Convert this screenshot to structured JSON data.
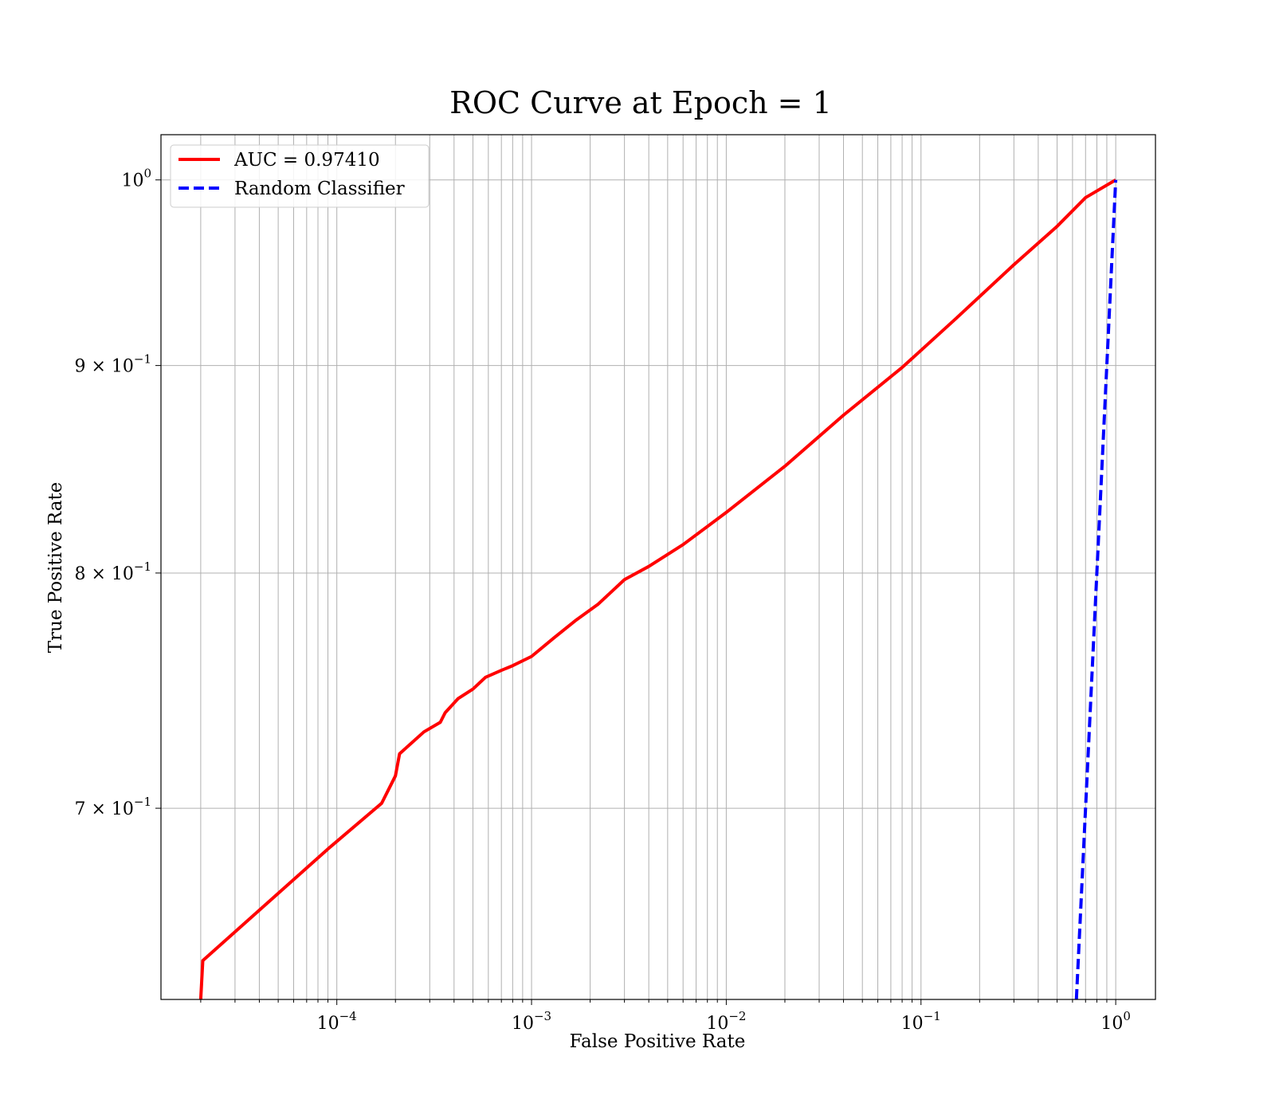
{
  "chart_data": {
    "type": "line",
    "title": "ROC Curve at Epoch = 1",
    "xlabel": "False Positive Rate",
    "ylabel": "True Positive Rate",
    "xscale": "log",
    "yscale": "log",
    "xlim": [
      1.25e-05,
      1.6
    ],
    "ylim": [
      0.628,
      1.026
    ],
    "grid": true,
    "grid_which": "both",
    "legend_position": "upper-left",
    "x_ticks": [
      {
        "value": 0.0001,
        "base": "10",
        "exp": "−4"
      },
      {
        "value": 0.001,
        "base": "10",
        "exp": "−3"
      },
      {
        "value": 0.01,
        "base": "10",
        "exp": "−2"
      },
      {
        "value": 0.1,
        "base": "10",
        "exp": "−1"
      },
      {
        "value": 1,
        "base": "10",
        "exp": "0"
      }
    ],
    "y_ticks": [
      {
        "value": 1.0,
        "base": "10",
        "exp": "0"
      },
      {
        "value": 0.9,
        "base": "9 × 10",
        "exp": "−1"
      },
      {
        "value": 0.8,
        "base": "8 × 10",
        "exp": "−1"
      },
      {
        "value": 0.7,
        "base": "7 × 10",
        "exp": "−1"
      }
    ],
    "series": [
      {
        "name": "AUC = 0.97410",
        "color": "#ff0000",
        "style": "solid",
        "x": [
          2e-05,
          2.05e-05,
          9e-05,
          0.00017,
          0.0002,
          0.00021,
          0.00028,
          0.00034,
          0.00036,
          0.00042,
          0.0005,
          0.00058,
          0.0007,
          0.0008,
          0.001,
          0.0013,
          0.0017,
          0.0022,
          0.003,
          0.004,
          0.006,
          0.01,
          0.02,
          0.04,
          0.08,
          0.15,
          0.3,
          0.5,
          0.7,
          1.0
        ],
        "y": [
          0.628,
          0.642,
          0.684,
          0.702,
          0.713,
          0.722,
          0.731,
          0.735,
          0.739,
          0.745,
          0.749,
          0.754,
          0.757,
          0.759,
          0.763,
          0.771,
          0.779,
          0.786,
          0.797,
          0.803,
          0.813,
          0.828,
          0.85,
          0.875,
          0.899,
          0.924,
          0.953,
          0.974,
          0.99,
          1.0
        ]
      },
      {
        "name": "Random Classifier",
        "color": "#0000ff",
        "style": "dashed",
        "x": [
          0.628,
          1.0
        ],
        "y": [
          0.628,
          1.0
        ]
      }
    ]
  }
}
